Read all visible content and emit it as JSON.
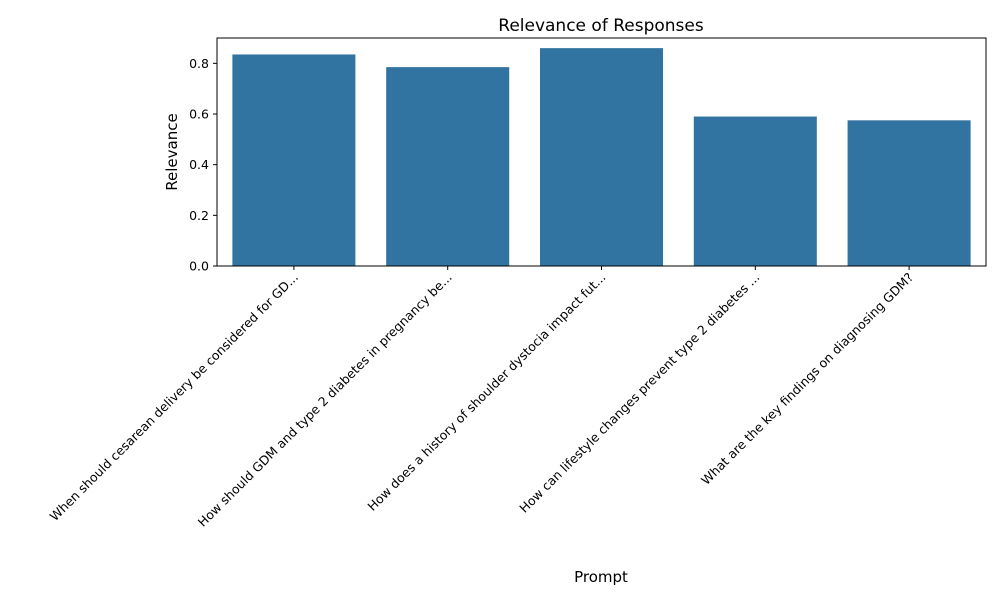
{
  "chart_data": {
    "type": "bar",
    "title": "Relevance of Responses",
    "xlabel": "Prompt",
    "ylabel": "Relevance",
    "categories": [
      "When should cesarean delivery be considered for GD...",
      "How should GDM and type 2 diabetes in pregnancy be...",
      "How does a history of shoulder dystocia impact fut...",
      "How can lifestyle changes prevent type 2 diabetes ...",
      "What are the key findings on diagnosing GDM?"
    ],
    "values": [
      0.835,
      0.785,
      0.86,
      0.59,
      0.575
    ],
    "ylim": [
      0,
      0.9
    ],
    "yticks": [
      "0.0",
      "0.2",
      "0.4",
      "0.6",
      "0.8"
    ],
    "grid": false,
    "bar_color": "#3274a1"
  }
}
